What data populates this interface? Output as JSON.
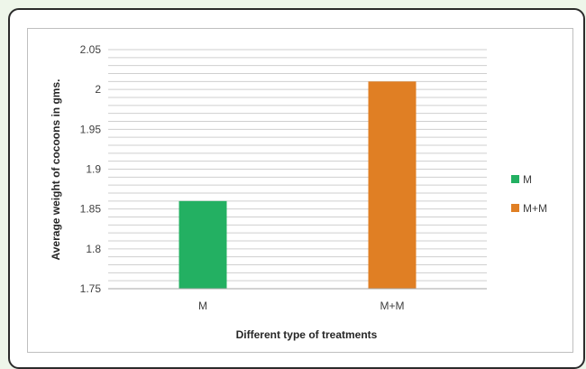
{
  "chart_data": {
    "type": "bar",
    "categories": [
      "M",
      "M+M"
    ],
    "values": [
      1.86,
      2.01
    ],
    "colors": [
      "#23b062",
      "#e07f24"
    ],
    "title": "",
    "xlabel": "Different type of treatments",
    "ylabel": "Average weight of cocoons in gms.",
    "ylim": [
      1.75,
      2.05
    ],
    "yticks": [
      "1.75",
      "1.8",
      "1.85",
      "1.9",
      "1.95",
      "2",
      "2.05"
    ],
    "grid": true,
    "legend": {
      "position": "right",
      "entries": [
        {
          "label": "M",
          "color": "#23b062"
        },
        {
          "label": "M+M",
          "color": "#e07f24"
        }
      ]
    }
  }
}
